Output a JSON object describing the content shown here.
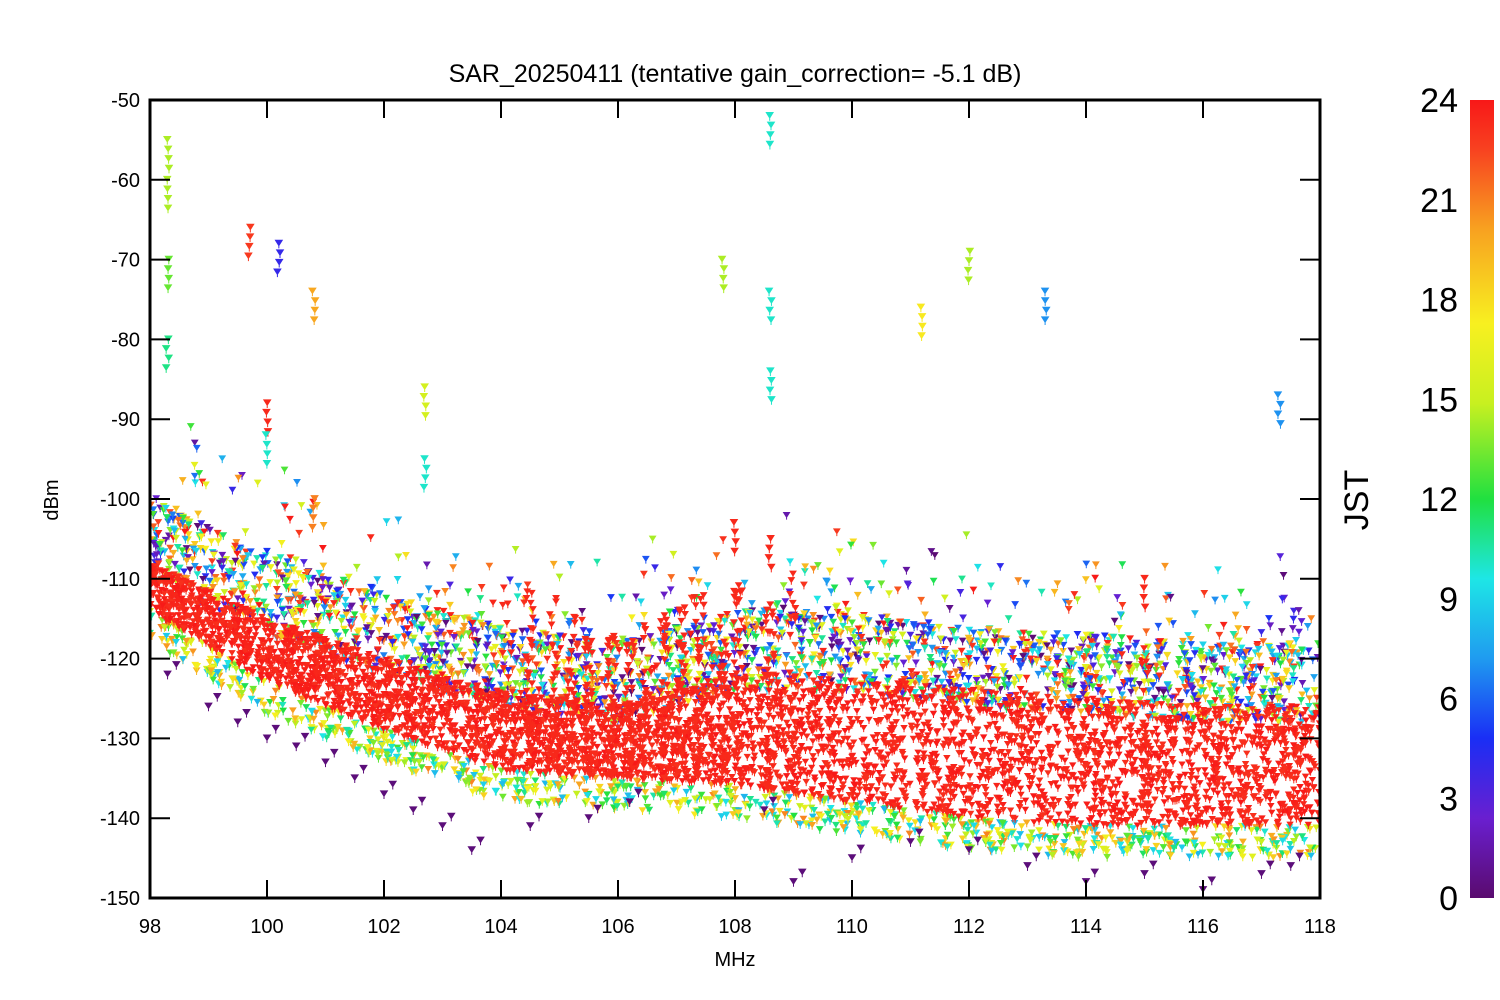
{
  "chart_data": {
    "type": "scatter",
    "title": "SAR_20250411 (tentative gain_correction= -5.1 dB)",
    "xlabel": "MHz",
    "ylabel": "dBm",
    "xlim": [
      98,
      118
    ],
    "ylim": [
      -150,
      -50
    ],
    "xticks": [
      98,
      100,
      102,
      104,
      106,
      108,
      110,
      112,
      114,
      116,
      118
    ],
    "yticks": [
      -50,
      -60,
      -70,
      -80,
      -90,
      -100,
      -110,
      -120,
      -130,
      -140,
      -150
    ],
    "grid": false,
    "marker": "asterisk-triangle",
    "colorbar": {
      "label": "JST",
      "range": [
        0,
        24
      ],
      "ticks": [
        0,
        3,
        6,
        9,
        12,
        15,
        18,
        21,
        24
      ],
      "colormap": "rainbow",
      "colors": [
        "#5a0b6e",
        "#6a1fd0",
        "#1a2ef5",
        "#1f9bf0",
        "#1ee6e6",
        "#20e040",
        "#c8f020",
        "#f8f020",
        "#f8a020",
        "#f84020",
        "#f81818"
      ]
    },
    "noise_floor_series": [
      {
        "x": 98,
        "y_min": -114,
        "y_max": -108
      },
      {
        "x": 100,
        "y_min": -123,
        "y_max": -115
      },
      {
        "x": 102,
        "y_min": -129,
        "y_max": -120
      },
      {
        "x": 104,
        "y_min": -134,
        "y_max": -124
      },
      {
        "x": 106,
        "y_min": -135,
        "y_max": -126
      },
      {
        "x": 108,
        "y_min": -136,
        "y_max": -122
      },
      {
        "x": 110,
        "y_min": -138,
        "y_max": -122
      },
      {
        "x": 112,
        "y_min": -140,
        "y_max": -124
      },
      {
        "x": 114,
        "y_min": -141,
        "y_max": -125
      },
      {
        "x": 116,
        "y_min": -141,
        "y_max": -126
      },
      {
        "x": 118,
        "y_min": -141,
        "y_max": -126
      }
    ],
    "strong_signals": [
      {
        "x": 98.3,
        "y": -55,
        "jst": 14
      },
      {
        "x": 98.3,
        "y": -60,
        "jst": 14
      },
      {
        "x": 98.3,
        "y": -70,
        "jst": 13
      },
      {
        "x": 98.3,
        "y": -80,
        "jst": 11
      },
      {
        "x": 99.7,
        "y": -66,
        "jst": 22
      },
      {
        "x": 100.2,
        "y": -68,
        "jst": 4
      },
      {
        "x": 100.0,
        "y": -88,
        "jst": 23
      },
      {
        "x": 100.0,
        "y": -92,
        "jst": 10
      },
      {
        "x": 100.8,
        "y": -74,
        "jst": 19
      },
      {
        "x": 100.8,
        "y": -100,
        "jst": 20
      },
      {
        "x": 102.7,
        "y": -86,
        "jst": 15
      },
      {
        "x": 102.7,
        "y": -95,
        "jst": 10
      },
      {
        "x": 107.8,
        "y": -70,
        "jst": 14
      },
      {
        "x": 108.6,
        "y": -52,
        "jst": 10
      },
      {
        "x": 108.6,
        "y": -74,
        "jst": 10
      },
      {
        "x": 108.6,
        "y": -84,
        "jst": 10
      },
      {
        "x": 112.0,
        "y": -69,
        "jst": 14
      },
      {
        "x": 113.3,
        "y": -74,
        "jst": 7
      },
      {
        "x": 111.2,
        "y": -76,
        "jst": 17
      },
      {
        "x": 117.3,
        "y": -87,
        "jst": 7
      },
      {
        "x": 115.0,
        "y": -110,
        "jst": 23
      },
      {
        "x": 108.0,
        "y": -103,
        "jst": 23
      },
      {
        "x": 108.6,
        "y": -105,
        "jst": 23
      }
    ],
    "night_series": [
      {
        "x": 98.3,
        "y": -122
      },
      {
        "x": 99.0,
        "y": -126
      },
      {
        "x": 99.5,
        "y": -128
      },
      {
        "x": 100.0,
        "y": -130
      },
      {
        "x": 100.5,
        "y": -131
      },
      {
        "x": 101.0,
        "y": -133
      },
      {
        "x": 101.5,
        "y": -135
      },
      {
        "x": 102.0,
        "y": -137
      },
      {
        "x": 102.5,
        "y": -139
      },
      {
        "x": 103.0,
        "y": -141
      },
      {
        "x": 103.5,
        "y": -144
      },
      {
        "x": 104.5,
        "y": -141
      },
      {
        "x": 105.5,
        "y": -140
      },
      {
        "x": 106.2,
        "y": -138
      },
      {
        "x": 108.5,
        "y": -139
      },
      {
        "x": 109.0,
        "y": -148
      },
      {
        "x": 110.0,
        "y": -145
      },
      {
        "x": 111.0,
        "y": -143
      },
      {
        "x": 112.0,
        "y": -144
      },
      {
        "x": 113.0,
        "y": -146
      },
      {
        "x": 114.0,
        "y": -148
      },
      {
        "x": 115.0,
        "y": -147
      },
      {
        "x": 116.0,
        "y": -149
      },
      {
        "x": 117.0,
        "y": -147
      },
      {
        "x": 117.5,
        "y": -146
      }
    ]
  }
}
